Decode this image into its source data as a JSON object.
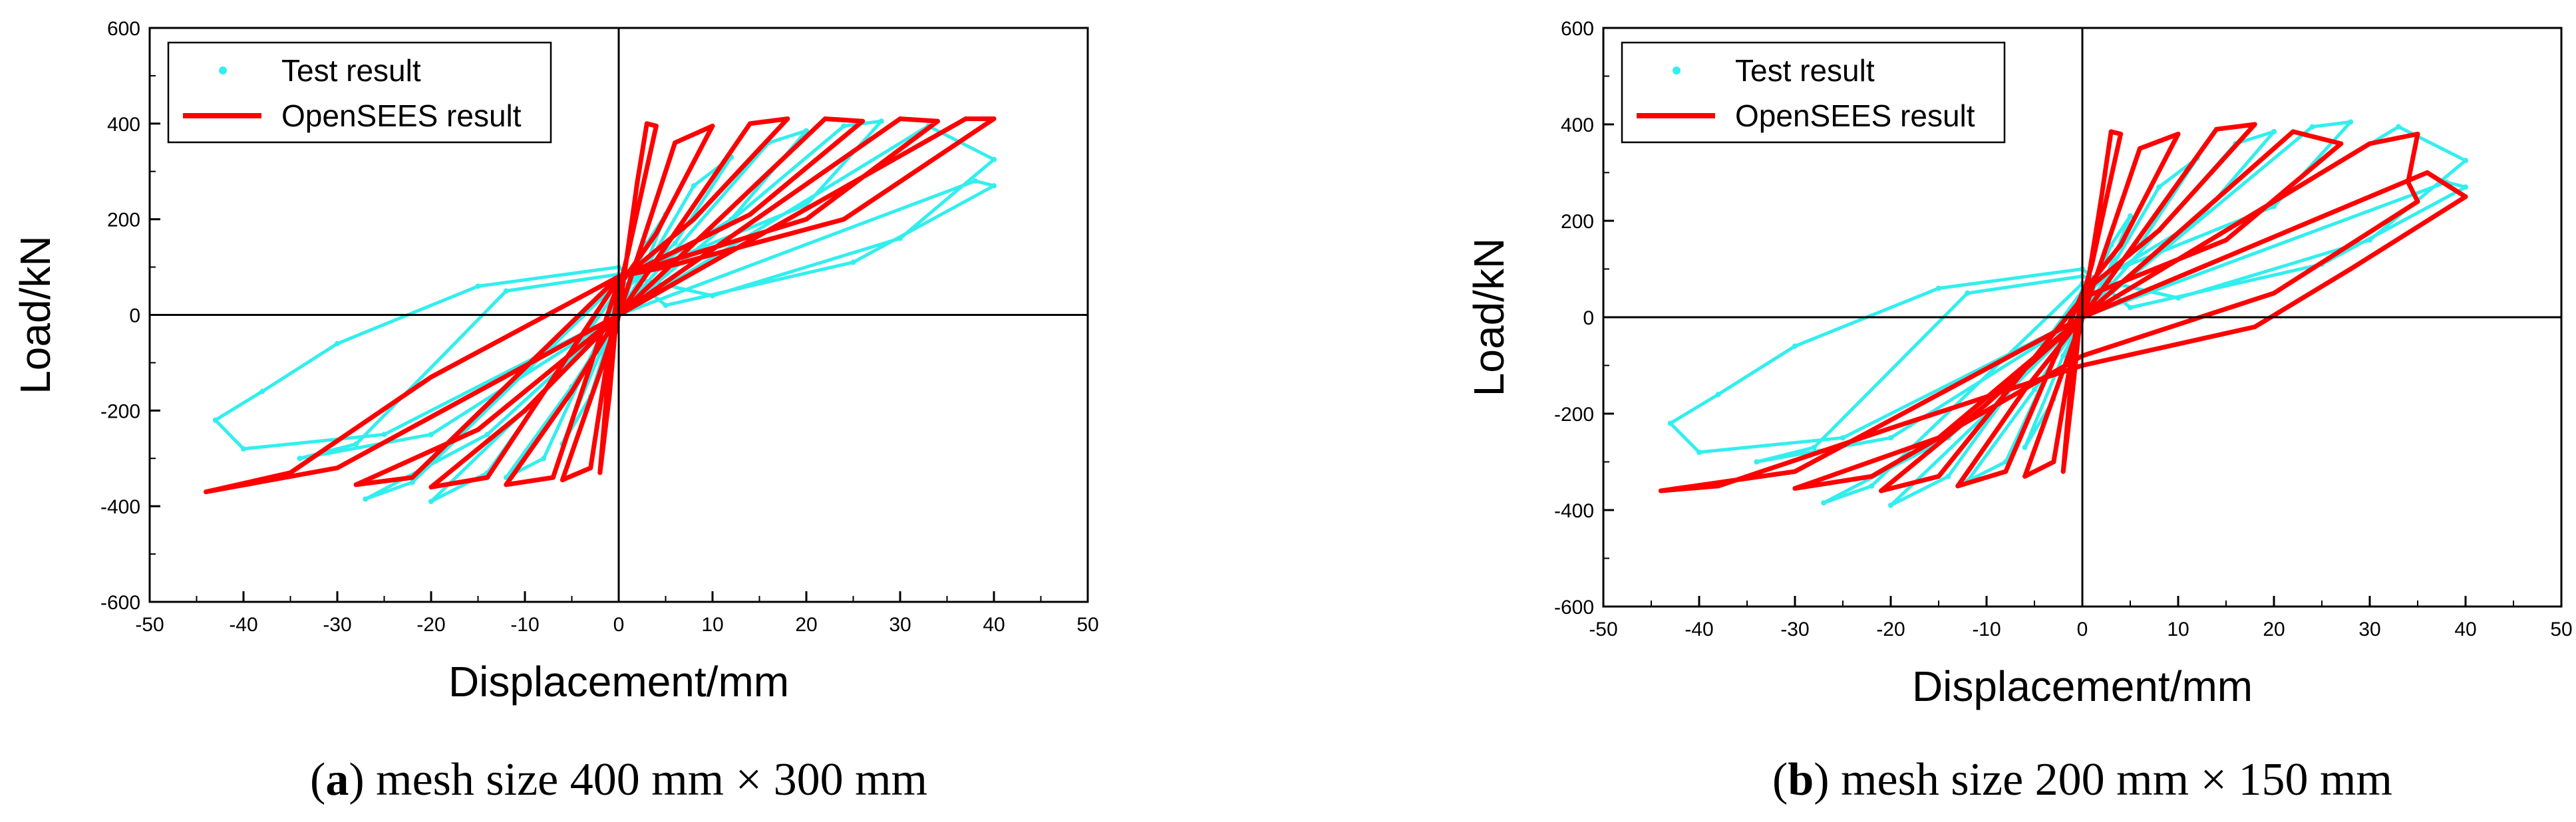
{
  "chart_data": [
    {
      "type": "line",
      "panel_label": "a",
      "caption": "mesh size 400 mm × 300 mm",
      "xlabel": "Displacement/mm",
      "ylabel": "Load/kN",
      "xlim": [
        -50,
        50
      ],
      "ylim": [
        -600,
        600
      ],
      "x_ticks": [
        -50,
        -40,
        -30,
        -20,
        -10,
        0,
        10,
        20,
        30,
        40,
        50
      ],
      "y_ticks": [
        -600,
        -400,
        -200,
        0,
        200,
        400,
        600
      ],
      "legend_position": "top-left",
      "series": [
        {
          "name": "Test result",
          "color": "#33EEEE",
          "marker": "dot",
          "note": "hysteresis loops traced with approximate peak points",
          "points": [
            [
              0,
              0
            ],
            [
              3,
              150
            ],
            [
              5,
              210
            ],
            [
              2,
              60
            ],
            [
              0,
              20
            ],
            [
              -3,
              -170
            ],
            [
              -6,
              -270
            ],
            [
              -2,
              -80
            ],
            [
              0,
              0
            ],
            [
              8,
              270
            ],
            [
              12,
              330
            ],
            [
              6,
              150
            ],
            [
              0,
              40
            ],
            [
              -8,
              -300
            ],
            [
              -12,
              -340
            ],
            [
              -5,
              -150
            ],
            [
              0,
              0
            ],
            [
              16,
              360
            ],
            [
              20,
              385
            ],
            [
              12,
              200
            ],
            [
              0,
              55
            ],
            [
              -14,
              -330
            ],
            [
              -20,
              -390
            ],
            [
              -10,
              -200
            ],
            [
              0,
              0
            ],
            [
              24,
              395
            ],
            [
              28,
              405
            ],
            [
              20,
              230
            ],
            [
              0,
              70
            ],
            [
              -22,
              -350
            ],
            [
              -27,
              -385
            ],
            [
              -14,
              -250
            ],
            [
              0,
              0
            ],
            [
              33,
              395
            ],
            [
              40,
              325
            ],
            [
              30,
              160
            ],
            [
              10,
              40
            ],
            [
              0,
              85
            ],
            [
              -12,
              50
            ],
            [
              -28,
              -270
            ],
            [
              -34,
              -300
            ],
            [
              -20,
              -250
            ],
            [
              0,
              0
            ],
            [
              38,
              280
            ],
            [
              40,
              270
            ],
            [
              25,
              110
            ],
            [
              5,
              20
            ],
            [
              0,
              100
            ],
            [
              -15,
              60
            ],
            [
              -30,
              -60
            ],
            [
              -38,
              -160
            ],
            [
              -43,
              -220
            ],
            [
              -40,
              -280
            ],
            [
              -25,
              -250
            ],
            [
              0,
              0
            ]
          ]
        },
        {
          "name": "OpenSEES result",
          "color": "#FF0000",
          "marker": "line",
          "note": "hysteresis loops traced with approximate peak points",
          "points": [
            [
              0,
              0
            ],
            [
              2,
              280
            ],
            [
              3,
              400
            ],
            [
              4,
              395
            ],
            [
              1,
              130
            ],
            [
              0,
              50
            ],
            [
              -1,
              -170
            ],
            [
              -2,
              -330
            ],
            [
              -1,
              -100
            ],
            [
              0,
              0
            ],
            [
              6,
              360
            ],
            [
              10,
              395
            ],
            [
              4,
              170
            ],
            [
              0,
              60
            ],
            [
              -3,
              -320
            ],
            [
              -6,
              -345
            ],
            [
              -2,
              -120
            ],
            [
              0,
              0
            ],
            [
              14,
              400
            ],
            [
              18,
              410
            ],
            [
              8,
              200
            ],
            [
              0,
              70
            ],
            [
              -7,
              -340
            ],
            [
              -12,
              -355
            ],
            [
              -5,
              -160
            ],
            [
              0,
              0
            ],
            [
              22,
              410
            ],
            [
              26,
              405
            ],
            [
              14,
              210
            ],
            [
              0,
              75
            ],
            [
              -14,
              -340
            ],
            [
              -20,
              -360
            ],
            [
              -10,
              -200
            ],
            [
              0,
              0
            ],
            [
              30,
              410
            ],
            [
              34,
              405
            ],
            [
              20,
              200
            ],
            [
              0,
              80
            ],
            [
              -22,
              -340
            ],
            [
              -28,
              -355
            ],
            [
              -15,
              -240
            ],
            [
              0,
              0
            ],
            [
              37,
              410
            ],
            [
              40,
              410
            ],
            [
              24,
              200
            ],
            [
              5,
              100
            ],
            [
              0,
              80
            ],
            [
              -20,
              -130
            ],
            [
              -35,
              -330
            ],
            [
              -44,
              -370
            ],
            [
              -30,
              -320
            ],
            [
              0,
              0
            ]
          ]
        }
      ]
    },
    {
      "type": "line",
      "panel_label": "b",
      "caption": "mesh size 200 mm × 150 mm",
      "xlabel": "Displacement/mm",
      "ylabel": "Load/kN",
      "xlim": [
        -50,
        50
      ],
      "ylim": [
        -600,
        600
      ],
      "x_ticks": [
        -50,
        -40,
        -30,
        -20,
        -10,
        0,
        10,
        20,
        30,
        40,
        50
      ],
      "y_ticks": [
        -600,
        -400,
        -200,
        0,
        200,
        400,
        600
      ],
      "legend_position": "top-left",
      "series": [
        {
          "name": "Test result",
          "color": "#33EEEE",
          "marker": "dot",
          "note": "hysteresis loops traced with approximate peak points",
          "points": [
            [
              0,
              0
            ],
            [
              3,
              150
            ],
            [
              5,
              210
            ],
            [
              2,
              60
            ],
            [
              0,
              20
            ],
            [
              -3,
              -170
            ],
            [
              -6,
              -270
            ],
            [
              -2,
              -80
            ],
            [
              0,
              0
            ],
            [
              8,
              270
            ],
            [
              12,
              330
            ],
            [
              6,
              150
            ],
            [
              0,
              40
            ],
            [
              -8,
              -300
            ],
            [
              -12,
              -340
            ],
            [
              -5,
              -150
            ],
            [
              0,
              0
            ],
            [
              16,
              360
            ],
            [
              20,
              385
            ],
            [
              12,
              200
            ],
            [
              0,
              55
            ],
            [
              -14,
              -330
            ],
            [
              -20,
              -390
            ],
            [
              -10,
              -200
            ],
            [
              0,
              0
            ],
            [
              24,
              395
            ],
            [
              28,
              405
            ],
            [
              20,
              230
            ],
            [
              0,
              70
            ],
            [
              -22,
              -350
            ],
            [
              -27,
              -385
            ],
            [
              -14,
              -250
            ],
            [
              0,
              0
            ],
            [
              33,
              395
            ],
            [
              40,
              325
            ],
            [
              30,
              160
            ],
            [
              10,
              40
            ],
            [
              0,
              85
            ],
            [
              -12,
              50
            ],
            [
              -28,
              -270
            ],
            [
              -34,
              -300
            ],
            [
              -20,
              -250
            ],
            [
              0,
              0
            ],
            [
              38,
              280
            ],
            [
              40,
              270
            ],
            [
              25,
              110
            ],
            [
              5,
              20
            ],
            [
              0,
              100
            ],
            [
              -15,
              60
            ],
            [
              -30,
              -60
            ],
            [
              -38,
              -160
            ],
            [
              -43,
              -220
            ],
            [
              -40,
              -280
            ],
            [
              -25,
              -250
            ],
            [
              0,
              0
            ]
          ]
        },
        {
          "name": "OpenSEES result",
          "color": "#FF0000",
          "marker": "line",
          "note": "hysteresis loops traced with approximate peak points",
          "points": [
            [
              0,
              0
            ],
            [
              2,
              250
            ],
            [
              3,
              385
            ],
            [
              4,
              380
            ],
            [
              1,
              110
            ],
            [
              0,
              40
            ],
            [
              -1,
              -150
            ],
            [
              -2,
              -320
            ],
            [
              -1,
              -90
            ],
            [
              0,
              0
            ],
            [
              6,
              350
            ],
            [
              10,
              380
            ],
            [
              4,
              150
            ],
            [
              0,
              50
            ],
            [
              -3,
              -300
            ],
            [
              -6,
              -330
            ],
            [
              -2,
              -110
            ],
            [
              0,
              0
            ],
            [
              14,
              390
            ],
            [
              18,
              400
            ],
            [
              8,
              180
            ],
            [
              0,
              50
            ],
            [
              -8,
              -320
            ],
            [
              -13,
              -350
            ],
            [
              -6,
              -150
            ],
            [
              0,
              0
            ],
            [
              22,
              385
            ],
            [
              27,
              360
            ],
            [
              15,
              160
            ],
            [
              0,
              40
            ],
            [
              -15,
              -330
            ],
            [
              -21,
              -360
            ],
            [
              -10,
              -180
            ],
            [
              0,
              0
            ],
            [
              30,
              360
            ],
            [
              35,
              380
            ],
            [
              34,
              280
            ],
            [
              35,
              240
            ],
            [
              20,
              50
            ],
            [
              0,
              -80
            ],
            [
              -22,
              -330
            ],
            [
              -30,
              -355
            ],
            [
              -15,
              -250
            ],
            [
              0,
              0
            ],
            [
              36,
              300
            ],
            [
              40,
              250
            ],
            [
              28,
              100
            ],
            [
              18,
              -20
            ],
            [
              0,
              -100
            ],
            [
              -20,
              -230
            ],
            [
              -38,
              -350
            ],
            [
              -44,
              -360
            ],
            [
              -30,
              -320
            ],
            [
              0,
              0
            ]
          ]
        }
      ]
    }
  ]
}
